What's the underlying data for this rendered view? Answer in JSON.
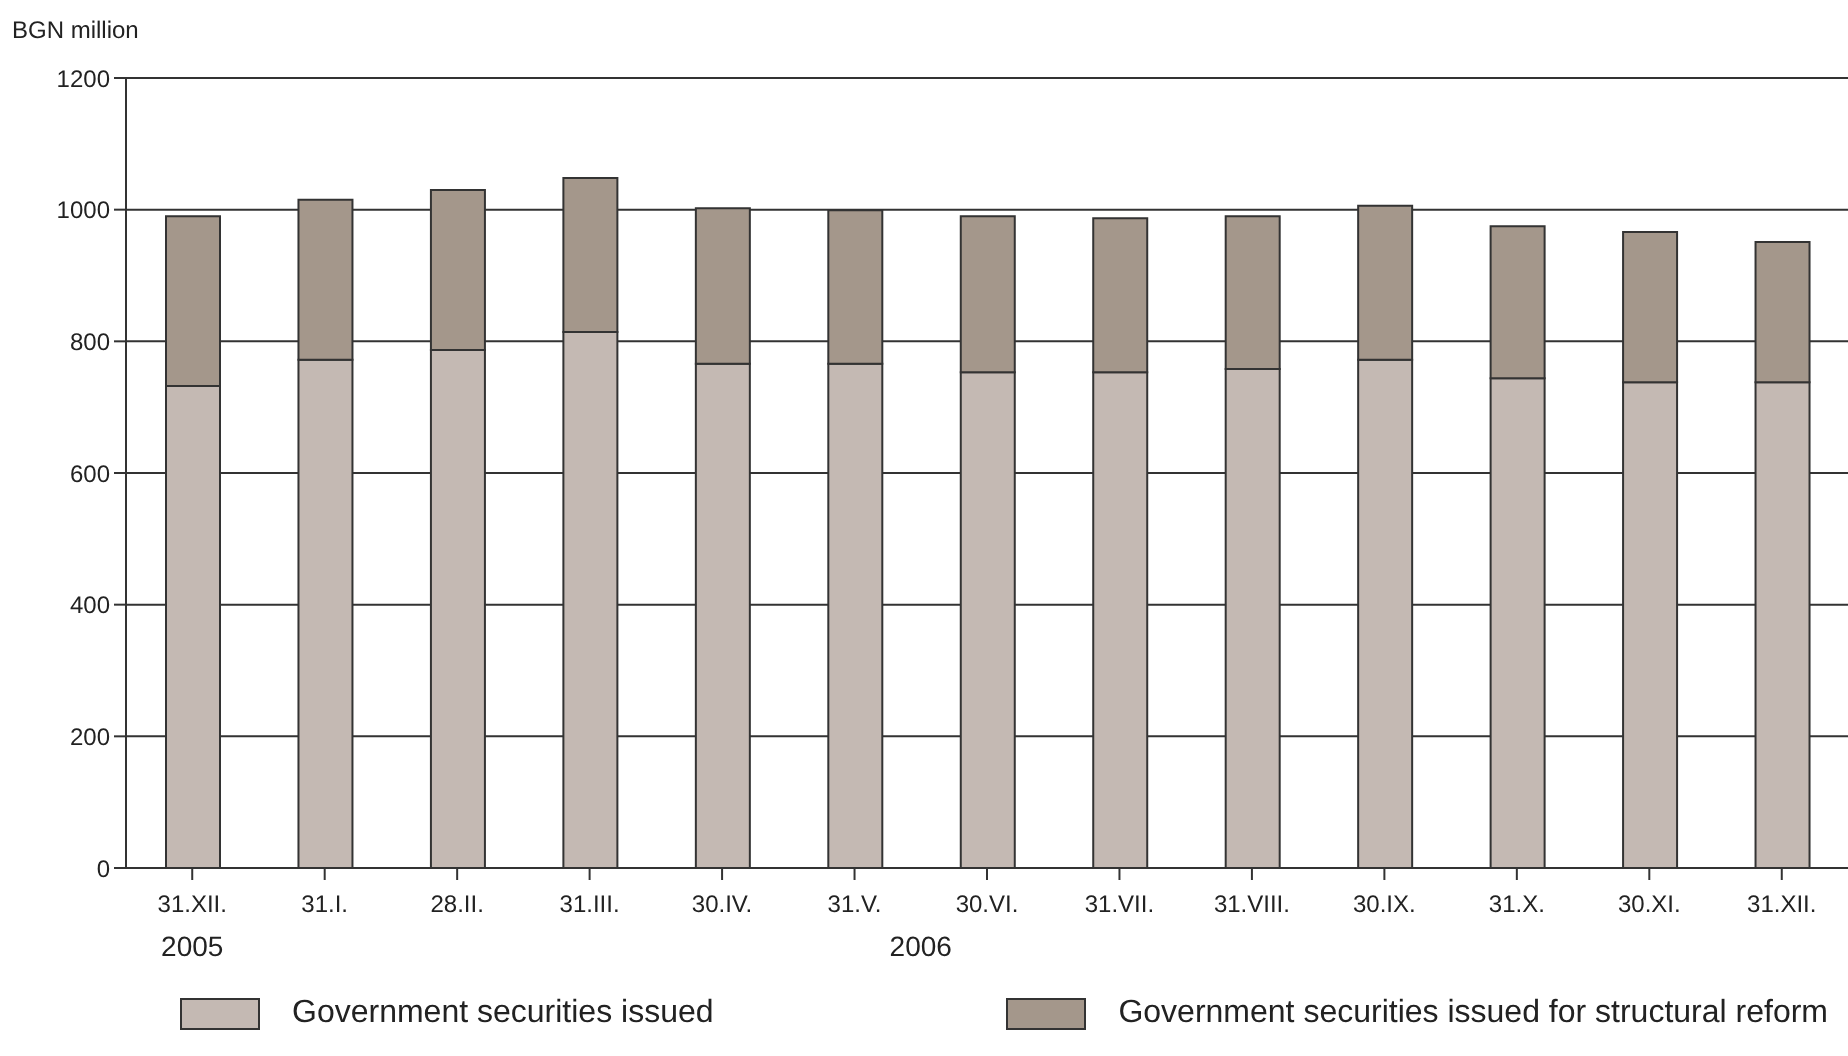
{
  "chart_data": {
    "type": "bar",
    "stacked": true,
    "ylabel": "BGN million",
    "categories": [
      "31.XII.",
      "31.I.",
      "28.II.",
      "31.III.",
      "30.IV.",
      "31.V.",
      "30.VI.",
      "31.VII.",
      "31.VIII.",
      "30.IX.",
      "31.X.",
      "30.XI.",
      "31.XII."
    ],
    "series": [
      {
        "name": "Government securities issued",
        "color": "#c4b9b3",
        "values": [
          732,
          772,
          787,
          814,
          766,
          766,
          753,
          753,
          758,
          772,
          744,
          738,
          738
        ]
      },
      {
        "name": "Government securities issued for structural reform",
        "color": "#a4978b",
        "values": [
          258,
          243,
          243,
          234,
          236,
          233,
          237,
          234,
          232,
          234,
          231,
          228,
          213
        ]
      }
    ],
    "ylim": [
      0,
      1200
    ],
    "yticks": [
      0,
      200,
      400,
      600,
      800,
      1000,
      1200
    ],
    "grid": "y",
    "legend": "bottom",
    "annotations": [
      "2005",
      "2006"
    ]
  }
}
